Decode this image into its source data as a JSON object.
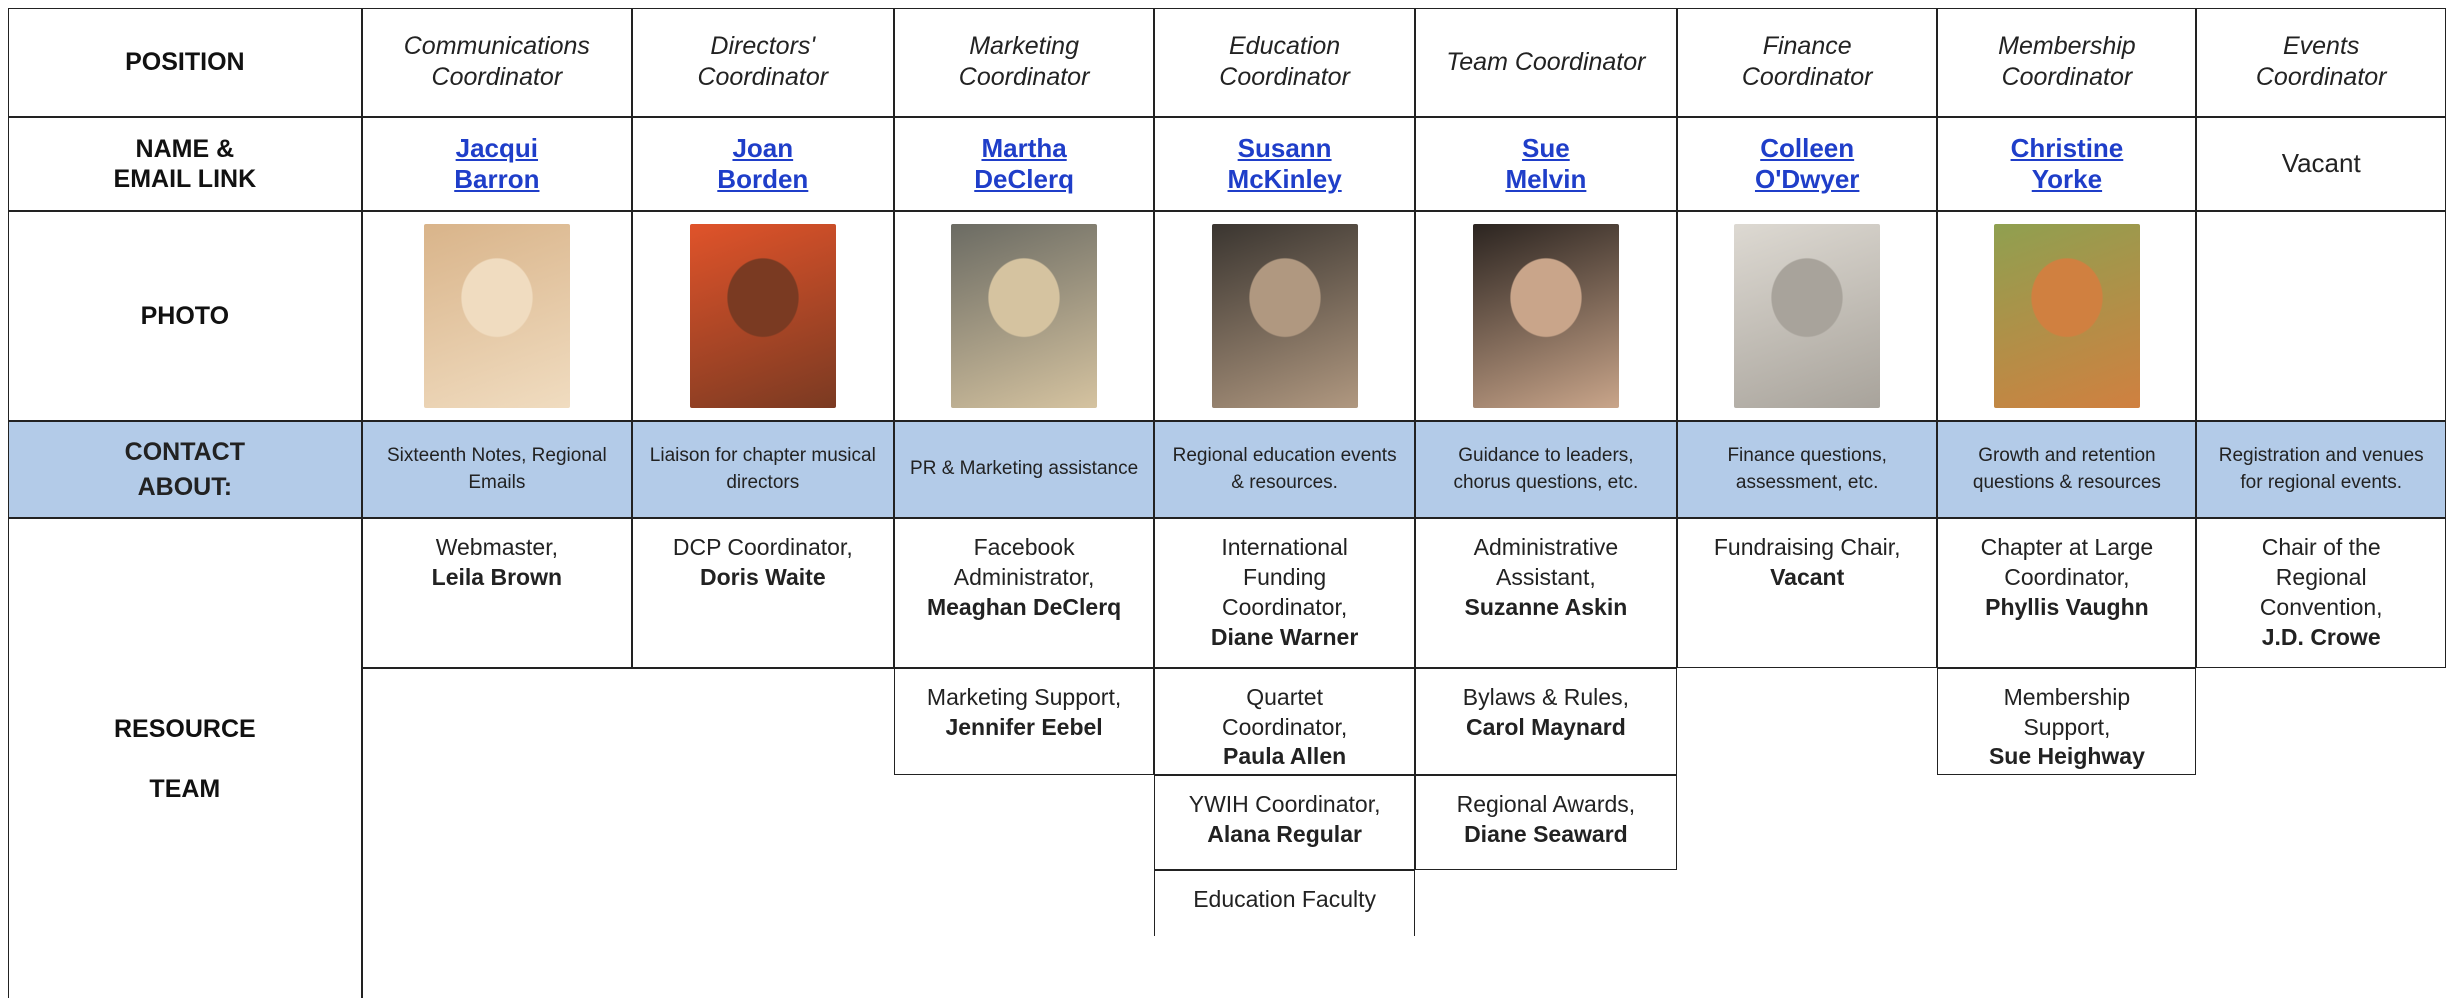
{
  "labels": {
    "position": "POSITION",
    "name": "NAME &\nEMAIL LINK",
    "photo": "PHOTO",
    "contact": "CONTACT\nABOUT:",
    "resource": "RESOURCE\n\nTEAM"
  },
  "columns": [
    {
      "position": "Communications Coordinator",
      "name": "Jacqui Barron",
      "name_is_link": true,
      "contact": "Sixteenth Notes, Regional Emails",
      "resource_team": [
        {
          "role": "Webmaster,",
          "name": "Leila Brown"
        }
      ]
    },
    {
      "position": "Directors' Coordinator",
      "name": "Joan Borden",
      "name_is_link": true,
      "contact": "Liaison for chapter musical directors",
      "resource_team": [
        {
          "role": "DCP Coordinator,",
          "name": "Doris Waite"
        }
      ]
    },
    {
      "position": "Marketing Coordinator",
      "name": "Martha DeClerq",
      "name_is_link": true,
      "contact": "PR & Marketing assistance",
      "resource_team": [
        {
          "role": "Facebook Administrator,",
          "name": "Meaghan DeClerq"
        },
        {
          "role": "Marketing Support,",
          "name": "Jennifer Eebel"
        }
      ]
    },
    {
      "position": "Education Coordinator",
      "name": "Susann McKinley",
      "name_is_link": true,
      "contact": "Regional education events & resources.",
      "resource_team": [
        {
          "role": "International Funding Coordinator,",
          "name": "Diane Warner"
        },
        {
          "role": "Quartet Coordinator,",
          "name": "Paula Allen"
        },
        {
          "role": "YWIH Coordinator,",
          "name": "Alana Regular"
        },
        {
          "role": "Education Faculty"
        }
      ]
    },
    {
      "position": "Team Coordinator",
      "name": "Sue Melvin",
      "name_is_link": true,
      "contact": "Guidance to leaders, chorus questions, etc.",
      "resource_team": [
        {
          "role": "Administrative Assistant,",
          "name": "Suzanne Askin"
        },
        {
          "role": "Bylaws & Rules,",
          "name": "Carol Maynard"
        },
        {
          "role": "Regional Awards,",
          "name": "Diane Seaward"
        }
      ]
    },
    {
      "position": "Finance Coordinator",
      "name": "Colleen O'Dwyer",
      "name_is_link": true,
      "contact": "Finance questions, assessment, etc.",
      "resource_team": [
        {
          "role": "Fundraising Chair,",
          "name": "Vacant"
        }
      ]
    },
    {
      "position": "Membership Coordinator",
      "name": "Christine Yorke",
      "name_is_link": true,
      "contact": "Growth and retention questions & resources",
      "resource_team": [
        {
          "role": "Chapter at Large Coordinator,",
          "name": "Phyllis Vaughn"
        },
        {
          "role": "Membership Support,",
          "name": "Sue Heighway"
        }
      ]
    },
    {
      "position": "Events Coordinator",
      "name": "Vacant",
      "name_is_link": false,
      "contact": "Registration and venues for regional events.",
      "resource_team": [
        {
          "role": "Chair of the Regional Convention,",
          "name": "J.D. Crowe"
        }
      ]
    }
  ]
}
